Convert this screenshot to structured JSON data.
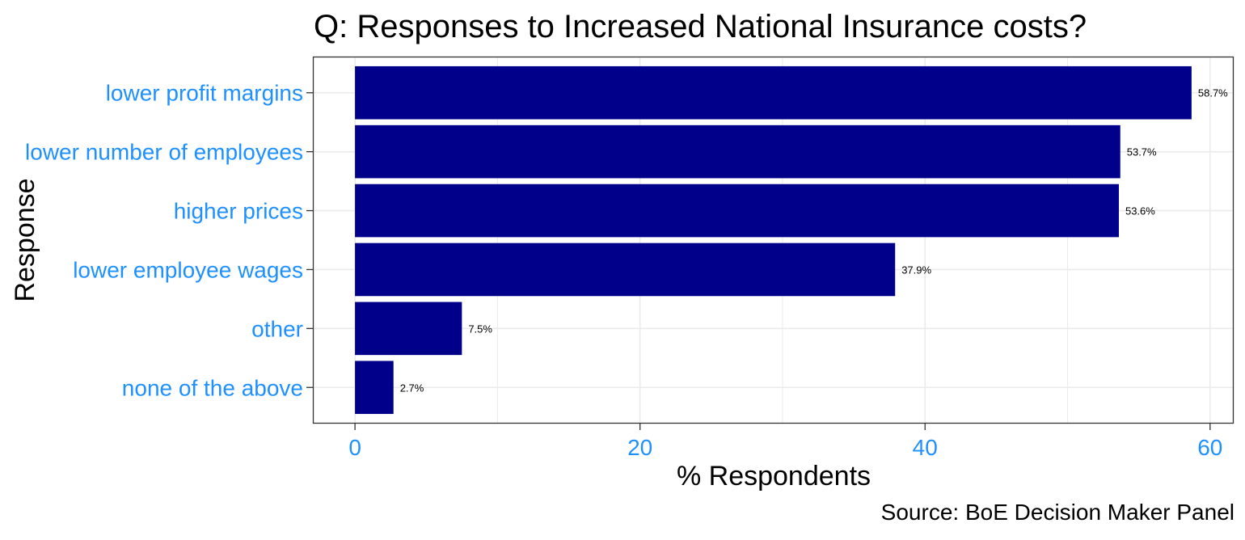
{
  "chart_data": {
    "type": "bar",
    "orientation": "horizontal",
    "title": "Q: Responses to Increased National Insurance costs?",
    "xlabel": "% Respondents",
    "ylabel": "Response",
    "caption": "Source: BoE Decision Maker Panel",
    "categories": [
      "lower profit margins",
      "lower number of employees",
      "higher prices",
      "lower employee wages",
      "other",
      "none of the above"
    ],
    "values": [
      58.7,
      53.7,
      53.6,
      37.9,
      7.5,
      2.7
    ],
    "value_labels": [
      "58.7%",
      "53.7%",
      "53.6%",
      "37.9%",
      "7.5%",
      "2.7%"
    ],
    "xlim": [
      -2.9,
      61.6
    ],
    "xticks": [
      0,
      20,
      40,
      60
    ],
    "grid": true,
    "colors": {
      "bar": "#00008B",
      "label": "#1E90FF",
      "grid": "#EBEBEB",
      "panel_border": "#333333"
    }
  }
}
